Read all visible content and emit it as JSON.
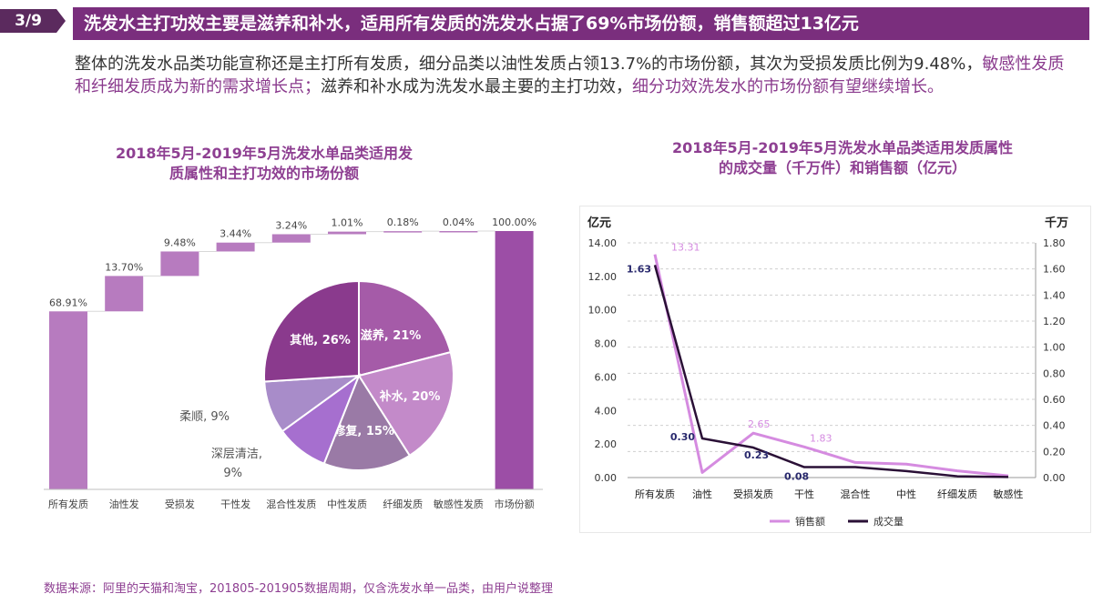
{
  "header": {
    "page": "3/9",
    "title": "洗发水主打功效主要是滋养和补水，适用所有发质的洗发水占据了69%市场份额，销售额超过13亿元"
  },
  "summary": {
    "part1": "整体的洗发水品类功能宣称还是主打所有发质，细分品类以油性发质占领13.7%的市场份额，其次为受损发质比例为9.48%，",
    "part2": "敏感性发质和纤细发质成为新的需求增长点；",
    "part3": "滋养和补水成为洗发水最主要的主打功效，",
    "part4": "细分功效洗发水的市场份额有望继续增长。"
  },
  "left_chart": {
    "title_line1": "2018年5月-2019年5月洗发水单品类适用发",
    "title_line2": "质属性和主打功效的市场份额"
  },
  "right_chart": {
    "title_line1": "2018年5月-2019年5月洗发水单品类适用发质属性",
    "title_line2": "的成交量（千万件）和销售额（亿元）"
  },
  "chart_data": [
    {
      "type": "bar",
      "subtype": "waterfall",
      "categories": [
        "所有发质",
        "油性发",
        "受损发",
        "干性发",
        "混合性发质",
        "中性发质",
        "纤细发质",
        "敏感性发质",
        "市场份额"
      ],
      "values": [
        68.91,
        13.7,
        9.48,
        3.44,
        3.24,
        1.01,
        0.18,
        0.04,
        100.0
      ],
      "data_labels": [
        "68.91%",
        "13.70%",
        "9.48%",
        "3.44%",
        "3.24%",
        "1.01%",
        "0.18%",
        "0.04%",
        "100.00%"
      ],
      "ylim": [
        0,
        100
      ],
      "grid": false,
      "colors": [
        "#b77bbf",
        "#b77bbf",
        "#b77bbf",
        "#b77bbf",
        "#b77bbf",
        "#b77bbf",
        "#b77bbf",
        "#b77bbf",
        "#9c4ea6"
      ]
    },
    {
      "type": "pie",
      "labels": [
        "滋养",
        "补水",
        "修复",
        "深层清洁",
        "柔顺",
        "其他"
      ],
      "values": [
        21,
        20,
        15,
        9,
        9,
        26
      ],
      "data_labels": [
        "滋养, 21%",
        "补水, 20%",
        "修复, 15%",
        "深层清洁,",
        "柔顺, 9%",
        "其他, 26%"
      ],
      "data_labels_extra": [
        "9%"
      ],
      "colors": [
        "#a55ba8",
        "#c38ac9",
        "#9a7aa6",
        "#a66fcf",
        "#a88cc9",
        "#8a3a8d"
      ]
    },
    {
      "type": "line",
      "categories": [
        "所有发质",
        "油性",
        "受损发质",
        "干性",
        "混合性",
        "中性",
        "纤细发质",
        "敏感性"
      ],
      "series": [
        {
          "name": "销售额",
          "axis": "left",
          "values": [
            13.31,
            0.3,
            2.65,
            1.83,
            0.9,
            0.8,
            0.4,
            0.1
          ],
          "color": "#d58be0"
        },
        {
          "name": "成交量",
          "axis": "right",
          "values": [
            1.63,
            0.3,
            0.23,
            0.08,
            0.08,
            0.05,
            0.01,
            0.004
          ],
          "color": "#2a1036"
        }
      ],
      "point_labels": [
        {
          "series": "销售额",
          "index": 0,
          "text": "13.31"
        },
        {
          "series": "成交量",
          "index": 0,
          "text": "1.63"
        },
        {
          "series": "成交量",
          "index": 1,
          "text": "0.30"
        },
        {
          "series": "销售额",
          "index": 2,
          "text": "2.65"
        },
        {
          "series": "成交量",
          "index": 2,
          "text": "0.23"
        },
        {
          "series": "销售额",
          "index": 3,
          "text": "1.83"
        },
        {
          "series": "成交量",
          "index": 3,
          "text": "0.08"
        }
      ],
      "ylabel": "亿元",
      "y2label": "千万",
      "ylim": [
        0,
        14
      ],
      "y2lim": [
        0,
        1.8
      ],
      "yticks": [
        "0.00",
        "2.00",
        "4.00",
        "6.00",
        "8.00",
        "10.00",
        "12.00",
        "14.00"
      ],
      "y2ticks": [
        "0.00",
        "0.20",
        "0.40",
        "0.60",
        "0.80",
        "1.00",
        "1.20",
        "1.40",
        "1.60",
        "1.80"
      ],
      "grid": true,
      "legend": "bottom"
    }
  ],
  "source": "数据来源：阿里的天猫和淘宝，201805-201905数据周期，仅含洗发水单一品类，由用户说整理"
}
